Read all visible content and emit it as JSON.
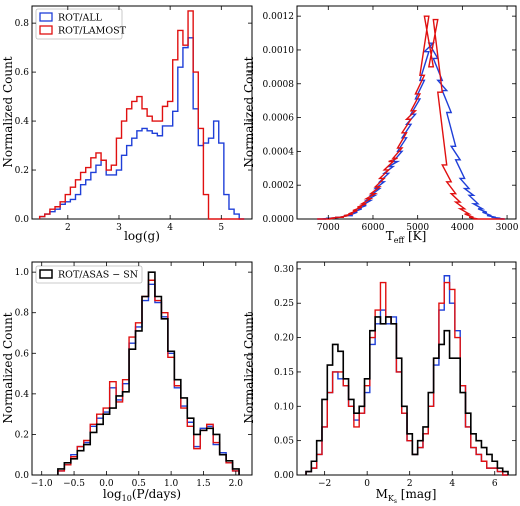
{
  "chart_data": [
    {
      "type": "line",
      "xlabel": "log(g)",
      "ylabel": "Normalized Count",
      "xlim": [
        1.3,
        5.6
      ],
      "ylim": [
        0,
        0.87
      ],
      "xticks": [
        "2",
        "3",
        "4",
        "5"
      ],
      "yticks": [
        "0.0",
        "0.2",
        "0.4",
        "0.6",
        "0.8"
      ],
      "legend": "top-left",
      "series": [
        {
          "name": "ROT/ALL",
          "color": "#1f3fd8",
          "x": [
            1.5,
            1.6,
            1.7,
            1.8,
            1.9,
            2.0,
            2.1,
            2.2,
            2.3,
            2.4,
            2.5,
            2.6,
            2.7,
            2.8,
            2.9,
            3.0,
            3.1,
            3.2,
            3.3,
            3.4,
            3.5,
            3.6,
            3.7,
            3.8,
            3.9,
            4.0,
            4.1,
            4.2,
            4.3,
            4.4,
            4.5,
            4.6,
            4.7,
            4.8,
            4.9,
            5.0,
            5.1,
            5.2,
            5.3,
            5.4
          ],
          "values": [
            0.01,
            0.02,
            0.03,
            0.04,
            0.06,
            0.07,
            0.08,
            0.1,
            0.14,
            0.16,
            0.19,
            0.22,
            0.24,
            0.18,
            0.18,
            0.2,
            0.26,
            0.3,
            0.33,
            0.36,
            0.37,
            0.36,
            0.35,
            0.34,
            0.38,
            0.38,
            0.44,
            0.62,
            0.7,
            0.74,
            0.45,
            0.3,
            0.31,
            0.33,
            0.4,
            0.31,
            0.1,
            0.04,
            0.02,
            0.0
          ]
        },
        {
          "name": "ROT/LAMOST",
          "color": "#e01010",
          "x": [
            1.5,
            1.6,
            1.7,
            1.8,
            1.9,
            2.0,
            2.1,
            2.2,
            2.3,
            2.4,
            2.5,
            2.6,
            2.7,
            2.8,
            2.9,
            3.0,
            3.1,
            3.2,
            3.3,
            3.4,
            3.5,
            3.6,
            3.7,
            3.8,
            3.9,
            4.0,
            4.1,
            4.2,
            4.3,
            4.4,
            4.5,
            4.6,
            4.7,
            4.8,
            4.9,
            5.0,
            5.1,
            5.2,
            5.3,
            5.4
          ],
          "values": [
            0.01,
            0.02,
            0.04,
            0.05,
            0.07,
            0.1,
            0.13,
            0.16,
            0.19,
            0.21,
            0.25,
            0.27,
            0.24,
            0.2,
            0.22,
            0.33,
            0.4,
            0.45,
            0.48,
            0.5,
            0.45,
            0.42,
            0.4,
            0.4,
            0.46,
            0.48,
            0.65,
            0.77,
            0.71,
            0.85,
            0.6,
            0.37,
            0.1,
            0.0,
            0.0,
            0.0,
            0.0,
            0.0,
            0.0,
            0.0
          ]
        }
      ]
    },
    {
      "type": "line",
      "xlabel": "T_eff [K]",
      "ylabel": "Normalized Count",
      "xlim": [
        7700,
        2800
      ],
      "ylim": [
        0,
        0.00126
      ],
      "xticks": [
        "7000",
        "6000",
        "5000",
        "4000",
        "3000"
      ],
      "yticks": [
        "0.0000",
        "0.0002",
        "0.0004",
        "0.0006",
        "0.0008",
        "0.0010",
        "0.0012"
      ],
      "series": [
        {
          "name": "ROT/ALL",
          "color": "#1f3fd8",
          "x": [
            7200,
            7100,
            7000,
            6900,
            6800,
            6700,
            6600,
            6500,
            6400,
            6300,
            6200,
            6100,
            6000,
            5900,
            5800,
            5700,
            5600,
            5500,
            5400,
            5300,
            5200,
            5100,
            5000,
            4900,
            4800,
            4700,
            4600,
            4500,
            4400,
            4300,
            4200,
            4100,
            4000,
            3900,
            3800,
            3700,
            3600,
            3500,
            3400,
            3300,
            3200,
            3100
          ],
          "values": [
            0.0,
            0.0,
            5e-06,
            5e-06,
            1e-05,
            1e-05,
            2e-05,
            2e-05,
            4e-05,
            6e-05,
            8e-05,
            0.00011,
            0.00014,
            0.00018,
            0.00022,
            0.00027,
            0.00031,
            0.00034,
            0.0004,
            0.00048,
            0.00056,
            0.00062,
            0.00071,
            0.00082,
            0.00099,
            0.00104,
            0.00095,
            0.00082,
            0.00076,
            0.00063,
            0.00043,
            0.00035,
            0.00024,
            0.00018,
            0.00014,
            9e-05,
            6e-05,
            4e-05,
            2e-05,
            1e-05,
            5e-06,
            0.0
          ]
        },
        {
          "name": "ROT/LAMOST",
          "color": "#e01010",
          "x": [
            7200,
            7100,
            7000,
            6900,
            6800,
            6700,
            6600,
            6500,
            6400,
            6300,
            6200,
            6100,
            6000,
            5900,
            5800,
            5700,
            5600,
            5500,
            5400,
            5300,
            5200,
            5100,
            5000,
            4900,
            4800,
            4700,
            4600,
            4500,
            4400,
            4300,
            4200,
            4100,
            4000,
            3900,
            3800,
            3700,
            3600,
            3500,
            3400,
            3300,
            3200,
            3100
          ],
          "values": [
            0.0,
            0.0,
            0.0,
            5e-06,
            1e-05,
            1e-05,
            2e-05,
            3e-05,
            5e-05,
            7e-05,
            9e-05,
            0.00012,
            0.00015,
            0.00019,
            0.00024,
            0.00029,
            0.00034,
            0.00036,
            0.00042,
            0.00051,
            0.00059,
            0.00064,
            0.00074,
            0.00085,
            0.0012,
            0.0009,
            0.00118,
            0.00075,
            0.00032,
            0.00022,
            0.00015,
            0.0001,
            6e-05,
            3e-05,
            1e-05,
            0.0,
            0.0,
            0.0,
            0.0,
            0.0,
            0.0,
            0.0
          ]
        }
      ]
    },
    {
      "type": "line",
      "xlabel": "log10(P/days)",
      "ylabel": "Normalized Count",
      "xlim": [
        -1.15,
        2.25
      ],
      "ylim": [
        0,
        1.05
      ],
      "xticks": [
        "−1.0",
        "−0.5",
        "0.0",
        "0.5",
        "1.0",
        "1.5",
        "2.0"
      ],
      "yticks": [
        "0.0",
        "0.2",
        "0.4",
        "0.6",
        "0.8",
        "1.0"
      ],
      "legend": "top-left",
      "series": [
        {
          "name": "ROT/ALL",
          "color": "#1f3fd8",
          "x": [
            -0.7,
            -0.6,
            -0.5,
            -0.4,
            -0.3,
            -0.2,
            -0.1,
            0.0,
            0.1,
            0.2,
            0.3,
            0.4,
            0.5,
            0.6,
            0.7,
            0.8,
            0.9,
            1.0,
            1.1,
            1.2,
            1.3,
            1.4,
            1.5,
            1.6,
            1.7,
            1.8,
            1.9,
            2.0
          ],
          "values": [
            0.02,
            0.05,
            0.1,
            0.14,
            0.16,
            0.24,
            0.28,
            0.31,
            0.43,
            0.37,
            0.45,
            0.65,
            0.73,
            0.86,
            0.94,
            0.85,
            0.78,
            0.6,
            0.43,
            0.34,
            0.26,
            0.14,
            0.23,
            0.24,
            0.15,
            0.11,
            0.06,
            0.02
          ]
        },
        {
          "name": "ROT/LAMOST",
          "color": "#e01010",
          "x": [
            -0.7,
            -0.6,
            -0.5,
            -0.4,
            -0.3,
            -0.2,
            -0.1,
            0.0,
            0.1,
            0.2,
            0.3,
            0.4,
            0.5,
            0.6,
            0.7,
            0.8,
            0.9,
            1.0,
            1.1,
            1.2,
            1.3,
            1.4,
            1.5,
            1.6,
            1.7,
            1.8,
            1.9,
            2.0
          ],
          "values": [
            0.02,
            0.05,
            0.09,
            0.14,
            0.17,
            0.25,
            0.3,
            0.33,
            0.46,
            0.36,
            0.47,
            0.68,
            0.75,
            0.88,
            0.96,
            0.86,
            0.8,
            0.58,
            0.44,
            0.33,
            0.24,
            0.13,
            0.22,
            0.25,
            0.16,
            0.1,
            0.06,
            0.02
          ]
        },
        {
          "name": "ROT/ASAS − SN",
          "color": "#000000",
          "x": [
            -0.7,
            -0.6,
            -0.5,
            -0.4,
            -0.3,
            -0.2,
            -0.1,
            0.0,
            0.1,
            0.2,
            0.3,
            0.4,
            0.5,
            0.6,
            0.7,
            0.8,
            0.9,
            1.0,
            1.1,
            1.2,
            1.3,
            1.4,
            1.5,
            1.6,
            1.7,
            1.8,
            1.9,
            2.0
          ],
          "values": [
            0.03,
            0.06,
            0.08,
            0.12,
            0.15,
            0.21,
            0.25,
            0.3,
            0.33,
            0.39,
            0.41,
            0.62,
            0.71,
            0.88,
            1.0,
            0.88,
            0.77,
            0.61,
            0.47,
            0.38,
            0.28,
            0.2,
            0.22,
            0.23,
            0.2,
            0.1,
            0.07,
            0.03
          ]
        }
      ]
    },
    {
      "type": "line",
      "xlabel": "M_Ks [mag]",
      "ylabel": "Normalized Count",
      "xlim": [
        -3.3,
        7.0
      ],
      "ylim": [
        0,
        0.31
      ],
      "xticks": [
        "−2",
        "0",
        "2",
        "4",
        "6"
      ],
      "yticks": [
        "0.00",
        "0.05",
        "0.10",
        "0.15",
        "0.20",
        "0.25",
        "0.30"
      ],
      "series": [
        {
          "name": "ROT/ALL",
          "color": "#1f3fd8",
          "x": [
            -2.75,
            -2.5,
            -2.25,
            -2.0,
            -1.75,
            -1.5,
            -1.25,
            -1.0,
            -0.75,
            -0.5,
            -0.25,
            0.0,
            0.25,
            0.5,
            0.75,
            1.0,
            1.25,
            1.5,
            1.75,
            2.0,
            2.25,
            2.5,
            2.75,
            3.0,
            3.25,
            3.5,
            3.75,
            4.0,
            4.25,
            4.5,
            4.75,
            5.0,
            5.25,
            5.5,
            5.75,
            6.0,
            6.25,
            6.5
          ],
          "values": [
            0.005,
            0.01,
            0.03,
            0.07,
            0.12,
            0.15,
            0.14,
            0.13,
            0.1,
            0.08,
            0.09,
            0.12,
            0.19,
            0.22,
            0.24,
            0.22,
            0.23,
            0.15,
            0.09,
            0.05,
            0.03,
            0.04,
            0.06,
            0.1,
            0.16,
            0.24,
            0.29,
            0.25,
            0.21,
            0.13,
            0.07,
            0.04,
            0.03,
            0.02,
            0.01,
            0.01,
            0.005,
            0.0
          ]
        },
        {
          "name": "ROT/LAMOST",
          "color": "#e01010",
          "x": [
            -2.75,
            -2.5,
            -2.25,
            -2.0,
            -1.75,
            -1.5,
            -1.25,
            -1.0,
            -0.75,
            -0.5,
            -0.25,
            0.0,
            0.25,
            0.5,
            0.75,
            1.0,
            1.25,
            1.5,
            1.75,
            2.0,
            2.25,
            2.5,
            2.75,
            3.0,
            3.25,
            3.5,
            3.75,
            4.0,
            4.25,
            4.5,
            4.75,
            5.0,
            5.25,
            5.5,
            5.75,
            6.0,
            6.25,
            6.5
          ],
          "values": [
            0.005,
            0.01,
            0.03,
            0.07,
            0.12,
            0.15,
            0.15,
            0.13,
            0.1,
            0.07,
            0.09,
            0.13,
            0.2,
            0.24,
            0.28,
            0.23,
            0.22,
            0.15,
            0.09,
            0.05,
            0.03,
            0.04,
            0.06,
            0.1,
            0.17,
            0.25,
            0.28,
            0.27,
            0.2,
            0.13,
            0.07,
            0.04,
            0.03,
            0.02,
            0.01,
            0.01,
            0.005,
            0.0
          ]
        },
        {
          "name": "ROT/ASAS − SN",
          "color": "#000000",
          "x": [
            -2.75,
            -2.5,
            -2.25,
            -2.0,
            -1.75,
            -1.5,
            -1.25,
            -1.0,
            -0.75,
            -0.5,
            -0.25,
            0.0,
            0.25,
            0.5,
            0.75,
            1.0,
            1.25,
            1.5,
            1.75,
            2.0,
            2.25,
            2.5,
            2.75,
            3.0,
            3.25,
            3.5,
            3.75,
            4.0,
            4.25,
            4.5,
            4.75,
            5.0,
            5.25,
            5.5,
            5.75,
            6.0,
            6.25,
            6.5
          ],
          "values": [
            0.005,
            0.02,
            0.05,
            0.11,
            0.16,
            0.19,
            0.18,
            0.14,
            0.11,
            0.09,
            0.1,
            0.14,
            0.21,
            0.23,
            0.22,
            0.23,
            0.22,
            0.17,
            0.1,
            0.06,
            0.03,
            0.05,
            0.07,
            0.12,
            0.17,
            0.19,
            0.21,
            0.17,
            0.17,
            0.12,
            0.09,
            0.06,
            0.05,
            0.04,
            0.03,
            0.02,
            0.01,
            0.005
          ]
        }
      ]
    }
  ]
}
